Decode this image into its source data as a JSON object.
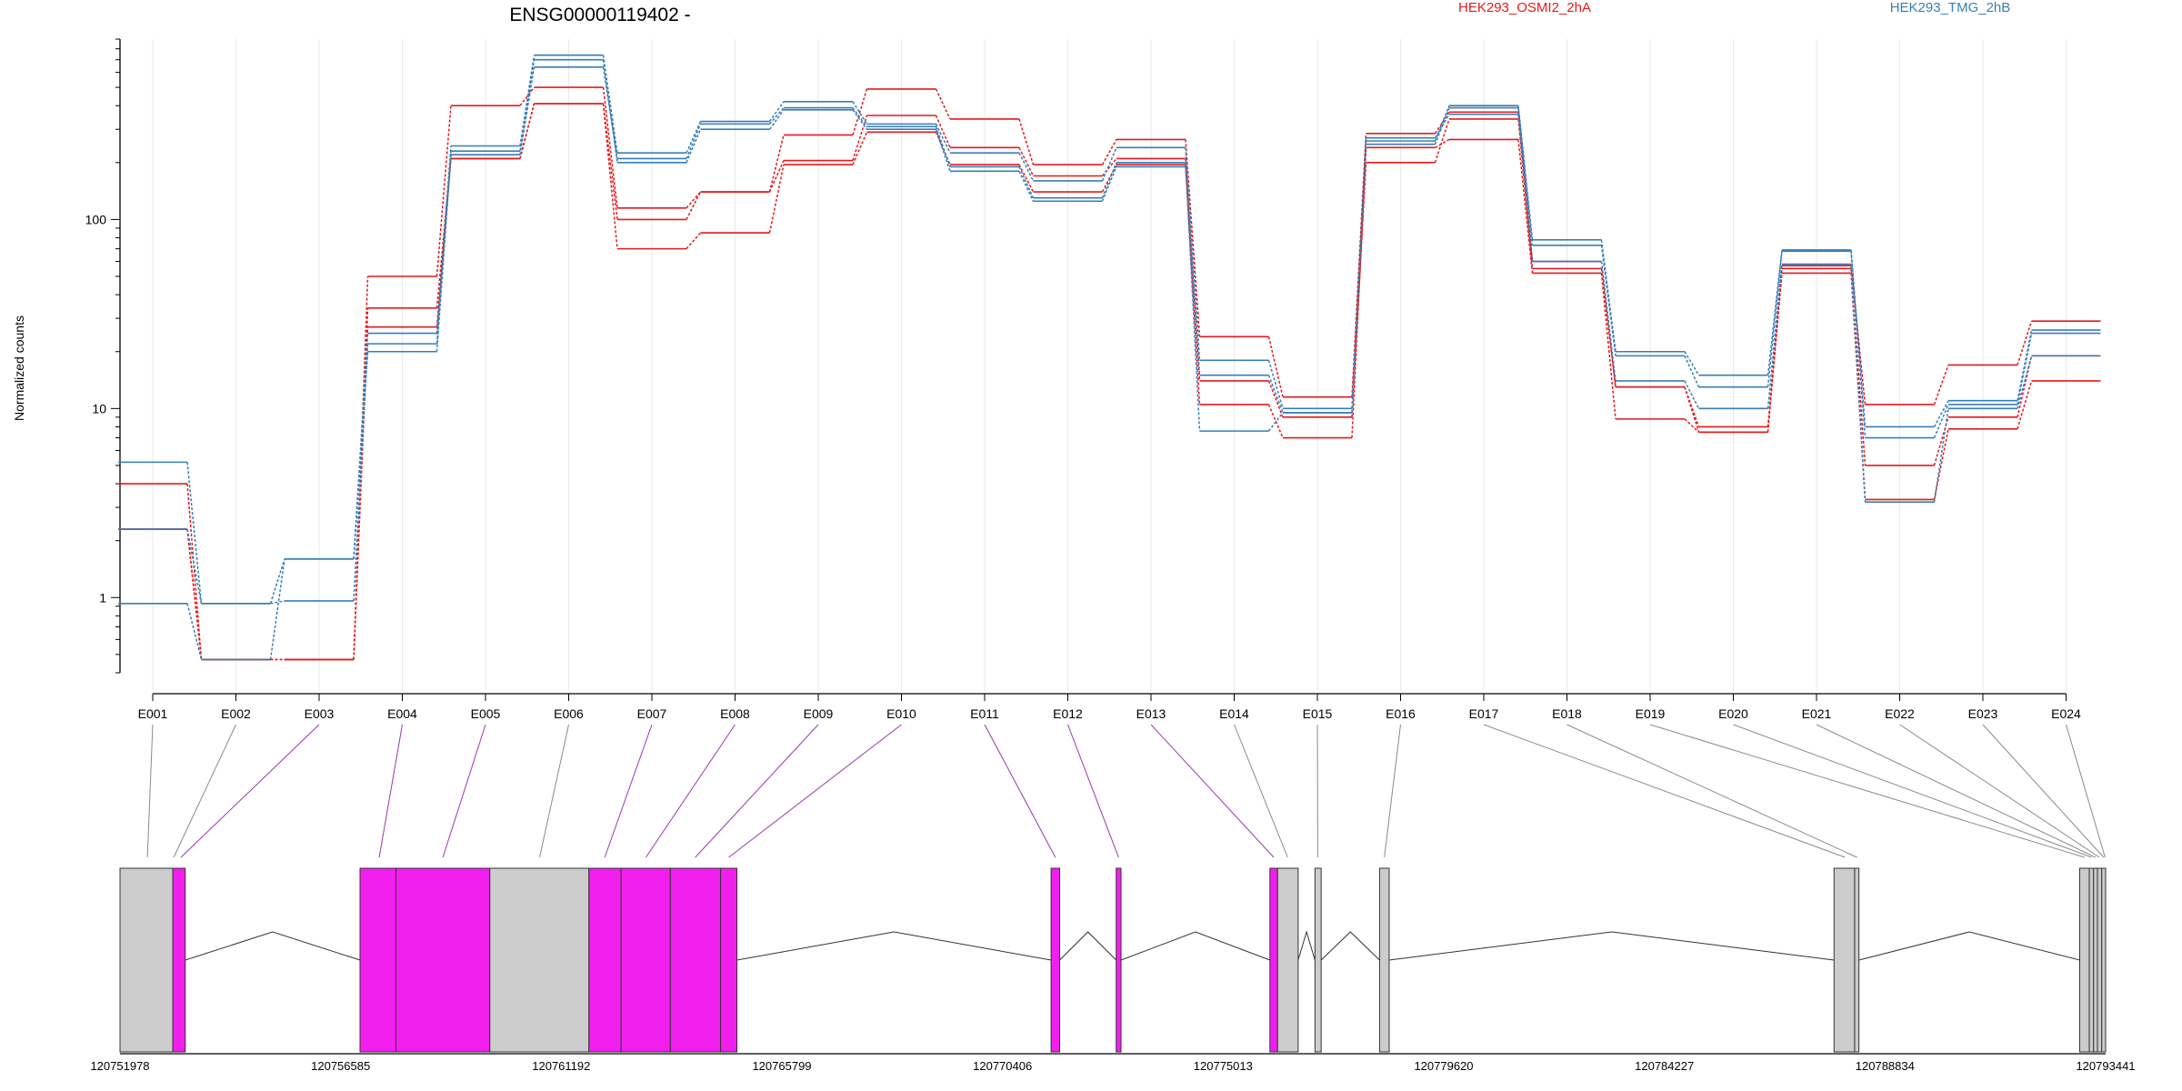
{
  "chart_data": {
    "type": "line",
    "title": "ENSG00000119402 -",
    "ylabel": "Normalized counts",
    "yscale": "log",
    "ylim": [
      0.4,
      900
    ],
    "yticks": [
      1,
      10,
      100
    ],
    "ytick_labels": [
      "1",
      "10",
      "100"
    ],
    "legend_position": "top",
    "colors": {
      "HEK293_OSMI2_2hA": "#e41a1c",
      "HEK293_TMG_2hB": "#377eb8",
      "exon_highlight": "#f11fee",
      "exon_plain": "#cccccc"
    },
    "categories": [
      "E001",
      "E002",
      "E003",
      "E004",
      "E005",
      "E006",
      "E007",
      "E008",
      "E009",
      "E010",
      "E011",
      "E012",
      "E013",
      "E014",
      "E015",
      "E016",
      "E017",
      "E018",
      "E019",
      "E020",
      "E021",
      "E022",
      "E023",
      "E024"
    ],
    "groups": [
      {
        "name": "HEK293_OSMI2_2hA"
      },
      {
        "name": "HEK293_TMG_2hB"
      }
    ],
    "series": [
      {
        "group": "HEK293_OSMI2_2hA",
        "values": [
          4.0,
          0.47,
          0.47,
          50,
          400,
          500,
          115,
          140,
          280,
          490,
          340,
          195,
          265,
          24,
          11.5,
          285,
          370,
          60,
          13,
          7.5,
          57,
          10.5,
          17,
          29
        ]
      },
      {
        "group": "HEK293_OSMI2_2hA",
        "values": [
          2.3,
          0.47,
          0.47,
          34,
          210,
          410,
          100,
          140,
          205,
          355,
          240,
          170,
          210,
          14,
          9,
          200,
          340,
          55,
          13,
          8,
          55,
          5,
          9,
          19
        ]
      },
      {
        "group": "HEK293_OSMI2_2hA",
        "values": [
          2.3,
          0.47,
          0.47,
          27,
          210,
          410,
          70,
          85,
          195,
          290,
          195,
          140,
          195,
          10.5,
          7,
          240,
          265,
          52,
          8.8,
          7.5,
          52,
          3.3,
          7.8,
          14
        ]
      },
      {
        "group": "HEK293_TMG_2hB",
        "values": [
          5.2,
          0.93,
          1.6,
          25,
          245,
          740,
          225,
          330,
          420,
          320,
          225,
          160,
          240,
          18,
          10,
          260,
          400,
          78,
          20,
          15,
          69,
          8,
          11,
          26
        ]
      },
      {
        "group": "HEK293_TMG_2hB",
        "values": [
          2.3,
          0.93,
          0.96,
          22,
          230,
          700,
          200,
          300,
          380,
          300,
          180,
          125,
          190,
          15,
          9.5,
          250,
          390,
          73,
          19,
          13,
          68,
          7,
          10.5,
          25
        ]
      },
      {
        "group": "HEK293_TMG_2hB",
        "values": [
          0.93,
          0.47,
          1.6,
          20,
          220,
          640,
          210,
          320,
          390,
          310,
          190,
          130,
          200,
          7.6,
          9.5,
          270,
          360,
          60,
          14,
          10,
          58,
          3.2,
          10,
          19
        ]
      }
    ],
    "genomic_axis": {
      "range": [
        120751978,
        120793441
      ],
      "tick_labels": [
        "120751978",
        "120756585",
        "120761192",
        "120765799",
        "120770406",
        "120775013",
        "120779620",
        "120784227",
        "120788834",
        "120793441"
      ]
    },
    "exons": [
      {
        "start": 120751978,
        "end": 120753080,
        "highlight": false
      },
      {
        "start": 120753080,
        "end": 120753340,
        "highlight": true
      },
      {
        "start": 120756990,
        "end": 120757740,
        "highlight": true
      },
      {
        "start": 120757740,
        "end": 120759700,
        "highlight": true
      },
      {
        "start": 120759700,
        "end": 120761770,
        "highlight": false
      },
      {
        "start": 120761770,
        "end": 120762440,
        "highlight": true
      },
      {
        "start": 120762440,
        "end": 120763470,
        "highlight": true
      },
      {
        "start": 120763470,
        "end": 120764520,
        "highlight": true
      },
      {
        "start": 120764520,
        "end": 120764860,
        "highlight": true
      },
      {
        "start": 120771420,
        "end": 120771600,
        "highlight": true
      },
      {
        "start": 120772780,
        "end": 120772880,
        "highlight": true
      },
      {
        "start": 120775990,
        "end": 120776150,
        "highlight": true
      },
      {
        "start": 120776150,
        "end": 120776580,
        "highlight": false
      },
      {
        "start": 120776930,
        "end": 120777060,
        "highlight": false
      },
      {
        "start": 120778280,
        "end": 120778480,
        "highlight": false
      },
      {
        "start": 120787770,
        "end": 120788200,
        "highlight": false
      },
      {
        "start": 120788200,
        "end": 120788290,
        "highlight": false
      },
      {
        "start": 120792900,
        "end": 120793100,
        "highlight": false
      },
      {
        "start": 120793100,
        "end": 120793190,
        "highlight": false
      },
      {
        "start": 120793190,
        "end": 120793270,
        "highlight": false
      },
      {
        "start": 120793270,
        "end": 120793360,
        "highlight": false
      },
      {
        "start": 120793360,
        "end": 120793441,
        "highlight": false
      }
    ],
    "introns": [
      [
        120753340,
        120756990
      ],
      [
        120764860,
        120771420
      ],
      [
        120771600,
        120772780
      ],
      [
        120772880,
        120775990
      ],
      [
        120776580,
        120776930
      ],
      [
        120777060,
        120778280
      ],
      [
        120778480,
        120787770
      ],
      [
        120788290,
        120792900
      ]
    ],
    "links": [
      {
        "exon": "E001",
        "pos": 120752550,
        "highlight": false
      },
      {
        "exon": "E002",
        "pos": 120753100,
        "highlight": false
      },
      {
        "exon": "E003",
        "pos": 120753250,
        "highlight": true
      },
      {
        "exon": "E004",
        "pos": 120757390,
        "highlight": true
      },
      {
        "exon": "E005",
        "pos": 120758720,
        "highlight": true
      },
      {
        "exon": "E006",
        "pos": 120760740,
        "highlight": false
      },
      {
        "exon": "E007",
        "pos": 120762100,
        "highlight": true
      },
      {
        "exon": "E008",
        "pos": 120762960,
        "highlight": true
      },
      {
        "exon": "E009",
        "pos": 120763990,
        "highlight": true
      },
      {
        "exon": "E010",
        "pos": 120764690,
        "highlight": true
      },
      {
        "exon": "E011",
        "pos": 120771510,
        "highlight": true
      },
      {
        "exon": "E012",
        "pos": 120772830,
        "highlight": true
      },
      {
        "exon": "E013",
        "pos": 120776070,
        "highlight": true
      },
      {
        "exon": "E014",
        "pos": 120776360,
        "highlight": false
      },
      {
        "exon": "E015",
        "pos": 120776990,
        "highlight": false
      },
      {
        "exon": "E016",
        "pos": 120778380,
        "highlight": false
      },
      {
        "exon": "E017",
        "pos": 120788000,
        "highlight": false
      },
      {
        "exon": "E018",
        "pos": 120788250,
        "highlight": false
      },
      {
        "exon": "E019",
        "pos": 120793000,
        "highlight": false
      },
      {
        "exon": "E020",
        "pos": 120793150,
        "highlight": false
      },
      {
        "exon": "E021",
        "pos": 120793230,
        "highlight": false
      },
      {
        "exon": "E022",
        "pos": 120793310,
        "highlight": false
      },
      {
        "exon": "E023",
        "pos": 120793400,
        "highlight": false
      },
      {
        "exon": "E024",
        "pos": 120793430,
        "highlight": false
      }
    ]
  }
}
